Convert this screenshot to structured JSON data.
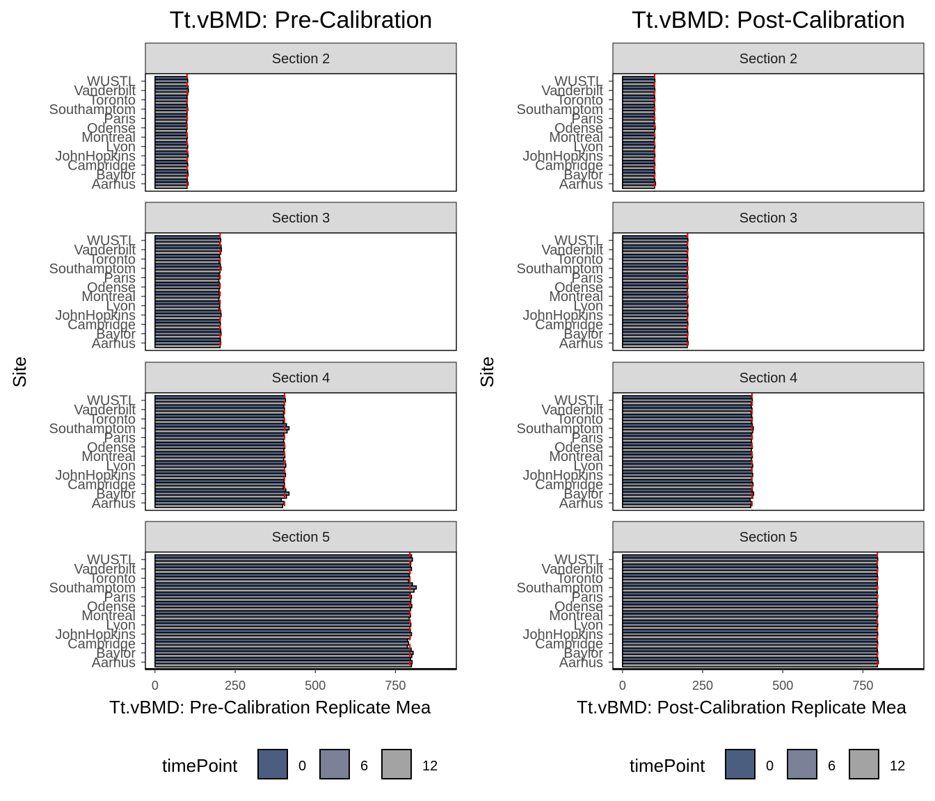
{
  "chart_data": [
    {
      "type": "bar",
      "orientation": "horizontal",
      "title": "Tt.vBMD: Pre-Calibration",
      "xlabel": "Tt.vBMD: Pre-Calibration Replicate Mea",
      "ylabel": "Site",
      "xlim": [
        -30,
        940
      ],
      "xticks": [
        0,
        250,
        500,
        750
      ],
      "categories": [
        "WUSTL",
        "Vanderbilt",
        "Toronto",
        "Southamptom",
        "Paris",
        "Odense",
        "Montreal",
        "Lyon",
        "JohnHopkins",
        "Cambridge",
        "Baylor",
        "Aarhus"
      ],
      "legend": {
        "title": "timePoint",
        "position": "bottom",
        "levels": [
          "0",
          "6",
          "12"
        ],
        "colors": [
          "#4b5e7f",
          "#7b8196",
          "#a3a3a3"
        ]
      },
      "reference_line_color": "#ff0000",
      "facets": [
        {
          "label": "Section 2",
          "reference": 100,
          "values": [
            [
              101,
              102,
              100
            ],
            [
              103,
              104,
              102
            ],
            [
              100,
              101,
              99
            ],
            [
              101,
              102,
              100
            ],
            [
              100,
              101,
              99
            ],
            [
              99,
              100,
              98
            ],
            [
              100,
              101,
              99
            ],
            [
              101,
              102,
              100
            ],
            [
              102,
              103,
              101
            ],
            [
              101,
              102,
              100
            ],
            [
              102,
              103,
              101
            ],
            [
              101,
              103,
              100
            ]
          ]
        },
        {
          "label": "Section 3",
          "reference": 203,
          "values": [
            [
              203,
              205,
              202
            ],
            [
              206,
              207,
              205
            ],
            [
              201,
              203,
              200
            ],
            [
              204,
              206,
              203
            ],
            [
              200,
              201,
              199
            ],
            [
              201,
              202,
              200
            ],
            [
              200,
              201,
              199
            ],
            [
              201,
              202,
              200
            ],
            [
              205,
              206,
              204
            ],
            [
              203,
              204,
              202
            ],
            [
              205,
              206,
              204
            ],
            [
              204,
              205,
              203
            ]
          ]
        },
        {
          "label": "Section 4",
          "reference": 404,
          "values": [
            [
              405,
              407,
              403
            ],
            [
              402,
              404,
              401
            ],
            [
              401,
              403,
              400
            ],
            [
              410,
              418,
              412
            ],
            [
              402,
              404,
              401
            ],
            [
              403,
              405,
              402
            ],
            [
              403,
              405,
              401
            ],
            [
              406,
              408,
              404
            ],
            [
              405,
              407,
              403
            ],
            [
              402,
              404,
              400
            ],
            [
              408,
              418,
              410
            ],
            [
              394,
              402,
              398
            ]
          ]
        },
        {
          "label": "Section 5",
          "reference": 795,
          "values": [
            [
              800,
              803,
              798
            ],
            [
              797,
              800,
              796
            ],
            [
              793,
              795,
              791
            ],
            [
              803,
              815,
              808
            ],
            [
              796,
              800,
              798
            ],
            [
              798,
              801,
              797
            ],
            [
              794,
              797,
              793
            ],
            [
              796,
              798,
              795
            ],
            [
              797,
              800,
              796
            ],
            [
              788,
              791,
              787
            ],
            [
              799,
              805,
              801
            ],
            [
              797,
              802,
              800
            ]
          ]
        }
      ]
    },
    {
      "type": "bar",
      "orientation": "horizontal",
      "title": "Tt.vBMD: Post-Calibration",
      "xlabel": "Tt.vBMD: Post-Calibration Replicate Mea",
      "ylabel": "Site",
      "xlim": [
        -30,
        940
      ],
      "xticks": [
        0,
        250,
        500,
        750
      ],
      "categories": [
        "WUSTL",
        "Vanderbilt",
        "Toronto",
        "Southamptom",
        "Paris",
        "Odense",
        "Montreal",
        "Lyon",
        "JohnHopkins",
        "Cambridge",
        "Baylor",
        "Aarhus"
      ],
      "legend": {
        "title": "timePoint",
        "position": "bottom",
        "levels": [
          "0",
          "6",
          "12"
        ],
        "colors": [
          "#4b5e7f",
          "#7b8196",
          "#a3a3a3"
        ]
      },
      "reference_line_color": "#ff0000",
      "facets": [
        {
          "label": "Section 2",
          "reference": 100,
          "values": [
            [
              100,
              101,
              99
            ],
            [
              100,
              101,
              99
            ],
            [
              100,
              101,
              99
            ],
            [
              100,
              101,
              99
            ],
            [
              100,
              101,
              99
            ],
            [
              101,
              102,
              100
            ],
            [
              100,
              101,
              99
            ],
            [
              100,
              101,
              99
            ],
            [
              100,
              101,
              99
            ],
            [
              100,
              101,
              99
            ],
            [
              100,
              101,
              99
            ],
            [
              101,
              103,
              100
            ]
          ]
        },
        {
          "label": "Section 3",
          "reference": 203,
          "values": [
            [
              203,
              204,
              202
            ],
            [
              203,
              204,
              202
            ],
            [
              203,
              204,
              202
            ],
            [
              203,
              204,
              202
            ],
            [
              203,
              204,
              202
            ],
            [
              203,
              204,
              202
            ],
            [
              203,
              204,
              202
            ],
            [
              203,
              204,
              202
            ],
            [
              203,
              204,
              202
            ],
            [
              203,
              204,
              202
            ],
            [
              203,
              204,
              202
            ],
            [
              203,
              205,
              202
            ]
          ]
        },
        {
          "label": "Section 4",
          "reference": 404,
          "values": [
            [
              403,
              405,
              402
            ],
            [
              402,
              404,
              401
            ],
            [
              403,
              405,
              402
            ],
            [
              405,
              408,
              406
            ],
            [
              403,
              405,
              402
            ],
            [
              403,
              405,
              402
            ],
            [
              403,
              405,
              402
            ],
            [
              404,
              406,
              403
            ],
            [
              404,
              406,
              403
            ],
            [
              404,
              407,
              405
            ],
            [
              405,
              409,
              406
            ],
            [
              398,
              402,
              400
            ]
          ]
        },
        {
          "label": "Section 5",
          "reference": 795,
          "values": [
            [
              795,
              796,
              794
            ],
            [
              795,
              796,
              794
            ],
            [
              795,
              796,
              794
            ],
            [
              795,
              796,
              794
            ],
            [
              795,
              796,
              794
            ],
            [
              795,
              796,
              794
            ],
            [
              795,
              796,
              794
            ],
            [
              795,
              796,
              794
            ],
            [
              795,
              796,
              794
            ],
            [
              795,
              796,
              794
            ],
            [
              795,
              796,
              794
            ],
            [
              796,
              798,
              795
            ]
          ]
        }
      ]
    }
  ]
}
